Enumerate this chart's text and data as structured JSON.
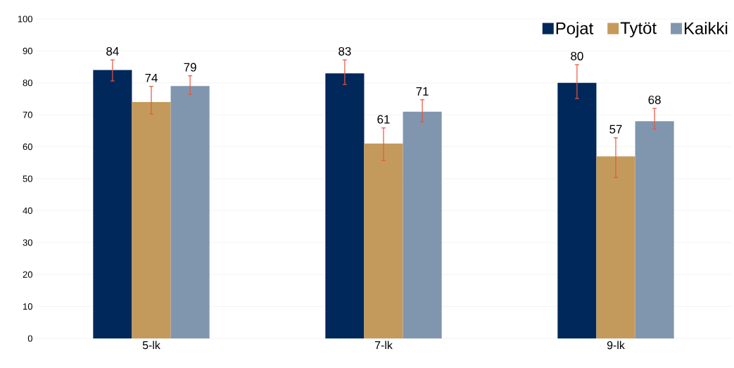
{
  "chart_data": {
    "type": "bar",
    "categories": [
      "5-lk",
      "7-lk",
      "9-lk"
    ],
    "series": [
      {
        "name": "Pojat",
        "color": "#00285a",
        "values": [
          84,
          83,
          80
        ],
        "errors": [
          [
            80.6,
            87.2
          ],
          [
            79.5,
            87.2
          ],
          [
            75.1,
            85.7
          ]
        ]
      },
      {
        "name": "Tytöt",
        "color": "#c49a5c",
        "values": [
          74,
          61,
          57
        ],
        "errors": [
          [
            70.3,
            78.9
          ],
          [
            55.7,
            65.9
          ],
          [
            50.4,
            62.8
          ]
        ]
      },
      {
        "name": "Kaikki",
        "color": "#8096ae",
        "values": [
          79,
          71,
          68
        ],
        "errors": [
          [
            76.4,
            82.2
          ],
          [
            67.8,
            74.7
          ],
          [
            65.6,
            72.0
          ]
        ]
      }
    ],
    "ylim": [
      0,
      100
    ],
    "yticks": [
      0,
      10,
      20,
      30,
      40,
      50,
      60,
      70,
      80,
      90,
      100
    ],
    "grid": "y",
    "legend": "top right",
    "data_labels": true
  }
}
